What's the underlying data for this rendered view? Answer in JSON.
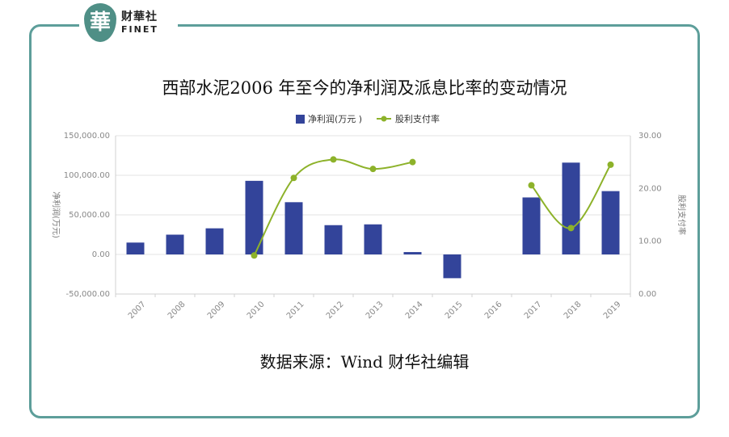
{
  "header": {
    "logo_char": "華",
    "logo_cn": "财華社",
    "logo_en": "FINET"
  },
  "chart_data": {
    "type": "bar+line",
    "title": "西部水泥2006 年至今的净利润及派息比率的变动情况",
    "categories": [
      "2007",
      "2008",
      "2009",
      "2010",
      "2011",
      "2012",
      "2013",
      "2014",
      "2015",
      "2016",
      "2017",
      "2018",
      "2019"
    ],
    "series": [
      {
        "name": "净利润(万元 )",
        "type": "bar",
        "axis": "left",
        "color": "#33449a",
        "values": [
          15000,
          25000,
          33000,
          93000,
          66000,
          37000,
          38000,
          3000,
          -30000,
          null,
          72000,
          116000,
          80000
        ]
      },
      {
        "name": "股利支付率",
        "type": "line",
        "axis": "right",
        "color": "#8db22a",
        "values": [
          null,
          null,
          null,
          7.3,
          22,
          25.5,
          23.7,
          25,
          null,
          null,
          20.6,
          12.5,
          24.5
        ]
      }
    ],
    "left_axis": {
      "label": "净利润(万元)",
      "min": -50000,
      "max": 150000,
      "ticks": [
        "-50,000.00",
        "0.00",
        "50,000.00",
        "100,000.00",
        "150,000.00"
      ]
    },
    "right_axis": {
      "label": "股利支付率",
      "min": 0,
      "max": 30,
      "ticks": [
        "0.00",
        "10.00",
        "20.00",
        "30.00"
      ]
    },
    "legend_position": "top-center",
    "grid": true
  },
  "footer": {
    "source": "数据来源：Wind 财华社编辑"
  }
}
